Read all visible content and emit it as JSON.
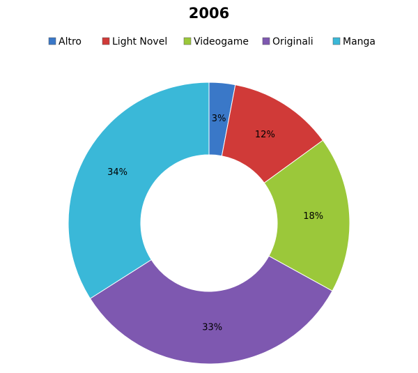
{
  "chart_data": {
    "type": "donut",
    "title": "2006",
    "categories": [
      "Altro",
      "Light Novel",
      "Videogame",
      "Originali",
      "Manga"
    ],
    "values": [
      3,
      12,
      18,
      33,
      34
    ],
    "value_labels": [
      "3%",
      "12%",
      "18%",
      "33%",
      "34%"
    ],
    "colors": [
      "#3a78c8",
      "#d03a38",
      "#9bc83a",
      "#7e58b0",
      "#3ab8d8"
    ]
  }
}
